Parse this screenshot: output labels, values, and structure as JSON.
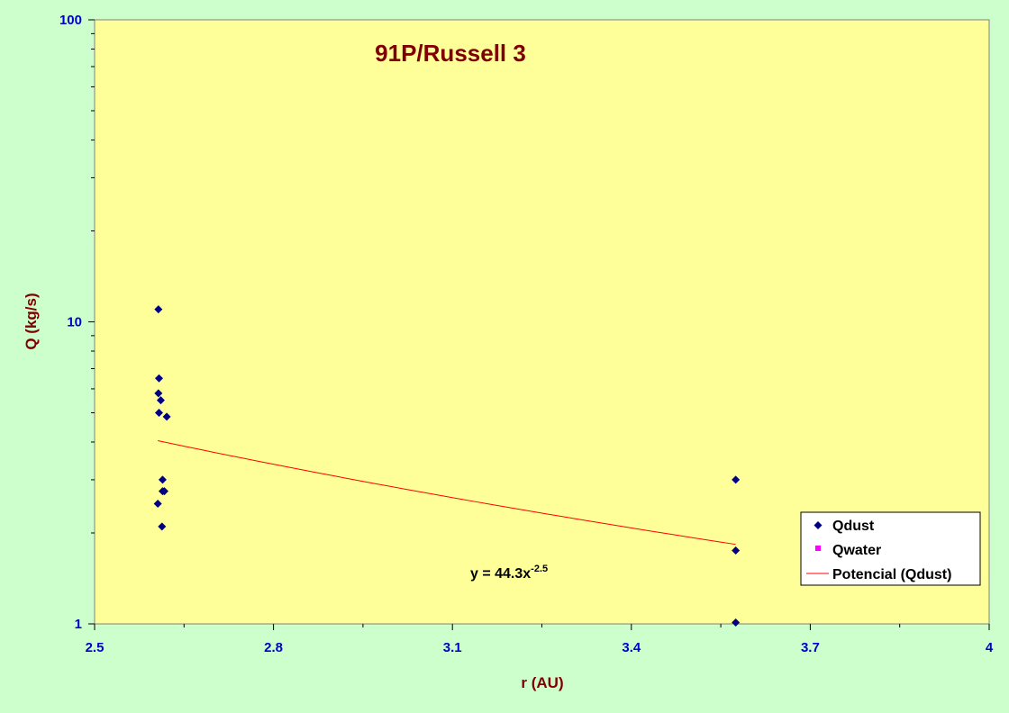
{
  "chart_data": {
    "type": "scatter",
    "title": "91P/Russell 3",
    "xlabel": "r (AU)",
    "ylabel": "Q (kg/s)",
    "xlim": [
      2.5,
      4
    ],
    "ylim": [
      1,
      100
    ],
    "yscale": "log",
    "x_ticks": [
      "2.5",
      "2.8",
      "3.1",
      "3.4",
      "3.7",
      "4"
    ],
    "x_tick_values": [
      2.5,
      2.8,
      3.1,
      3.4,
      3.7,
      4.0
    ],
    "y_ticks": [
      "1",
      "10",
      "100"
    ],
    "y_tick_values": [
      1,
      10,
      100
    ],
    "grid": false,
    "legend_position": "bottom-right",
    "series": [
      {
        "name": "Qdust",
        "marker": "diamond",
        "color": "#000080",
        "points": [
          {
            "x": 2.607,
            "y": 11.0
          },
          {
            "x": 2.608,
            "y": 6.5
          },
          {
            "x": 2.607,
            "y": 5.8
          },
          {
            "x": 2.611,
            "y": 5.5
          },
          {
            "x": 2.608,
            "y": 5.0
          },
          {
            "x": 2.621,
            "y": 4.85
          },
          {
            "x": 2.614,
            "y": 3.0
          },
          {
            "x": 2.614,
            "y": 2.75
          },
          {
            "x": 2.617,
            "y": 2.75
          },
          {
            "x": 2.606,
            "y": 2.5
          },
          {
            "x": 2.613,
            "y": 2.1
          },
          {
            "x": 3.575,
            "y": 3.0
          },
          {
            "x": 3.575,
            "y": 1.75
          },
          {
            "x": 3.575,
            "y": 1.01
          }
        ]
      },
      {
        "name": "Qwater",
        "marker": "square",
        "color": "#ff00ff",
        "points": []
      },
      {
        "name": "Potencial (Qdust)",
        "type": "line",
        "color": "#ff0000",
        "fit": {
          "a": 44.3,
          "b": -2.5
        },
        "x_range": [
          2.606,
          3.575
        ]
      }
    ],
    "annotations": [
      {
        "text_base": "y = 44.3x",
        "text_exp": "-2.5",
        "x": 3.125,
        "y": 1.17
      }
    ]
  }
}
